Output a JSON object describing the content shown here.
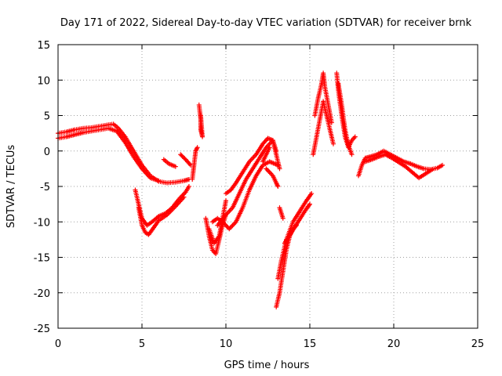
{
  "chart_data": {
    "type": "scatter",
    "title": "Day 171 of 2022, Sidereal Day-to-day VTEC variation (SDTVAR) for receiver brnk",
    "xlabel": "GPS time / hours",
    "ylabel": "SDTVAR / TECUs",
    "xlim": [
      0,
      25
    ],
    "ylim": [
      -25,
      15
    ],
    "xticks": [
      0,
      5,
      10,
      15,
      20,
      25
    ],
    "yticks": [
      15,
      10,
      5,
      0,
      -5,
      -10,
      -15,
      -20,
      -25
    ],
    "grid": true,
    "marker": "+",
    "color": "#ff0000",
    "series": [
      {
        "name": "brnk",
        "segments": [
          {
            "x": [
              0.0,
              0.5,
              1.0,
              1.5,
              2.0,
              2.5,
              3.0,
              3.3,
              3.6,
              4.0,
              4.5,
              5.0,
              5.5,
              6.0,
              6.5,
              7.0,
              7.5,
              7.8
            ],
            "y": [
              2.5,
              2.7,
              3.0,
              3.2,
              3.3,
              3.5,
              3.7,
              3.8,
              3.2,
              2.0,
              0.0,
              -2.0,
              -3.5,
              -4.3,
              -4.5,
              -4.4,
              -4.2,
              -4.0
            ]
          },
          {
            "x": [
              0.0,
              0.5,
              1.0,
              1.5,
              2.0,
              2.5,
              3.0,
              3.5,
              4.0,
              4.5,
              5.0,
              5.5,
              6.0
            ],
            "y": [
              1.8,
              2.0,
              2.3,
              2.6,
              2.8,
              3.0,
              3.2,
              2.8,
              1.2,
              -0.8,
              -2.5,
              -3.8,
              -4.2
            ]
          },
          {
            "x": [
              4.6,
              4.8,
              5.0,
              5.3,
              5.6,
              6.0,
              6.4,
              6.8,
              7.2,
              7.6,
              7.8
            ],
            "y": [
              -5.5,
              -7.5,
              -9.5,
              -10.5,
              -10.0,
              -9.2,
              -8.8,
              -8.0,
              -6.8,
              -5.8,
              -5.0
            ]
          },
          {
            "x": [
              4.8,
              5.0,
              5.2,
              5.4,
              5.7,
              6.0,
              6.5,
              7.0,
              7.5
            ],
            "y": [
              -8.0,
              -10.5,
              -11.5,
              -11.8,
              -10.8,
              -9.8,
              -9.0,
              -7.8,
              -6.5
            ]
          },
          {
            "x": [
              6.3,
              6.6,
              7.0
            ],
            "y": [
              -1.2,
              -1.8,
              -2.2
            ]
          },
          {
            "x": [
              7.3,
              7.6,
              7.9
            ],
            "y": [
              -0.5,
              -1.2,
              -2.0
            ]
          },
          {
            "x": [
              8.0,
              8.1,
              8.2,
              8.3
            ],
            "y": [
              -4.0,
              -2.0,
              0.0,
              0.5
            ]
          },
          {
            "x": [
              8.4,
              8.5,
              8.5,
              8.6,
              8.5
            ],
            "y": [
              6.5,
              4.5,
              3.0,
              2.0,
              5.0
            ]
          },
          {
            "x": [
              8.8,
              9.0,
              9.2,
              9.4,
              9.6,
              9.8,
              10.0
            ],
            "y": [
              -9.5,
              -12.0,
              -14.0,
              -14.5,
              -12.5,
              -10.5,
              -9.0
            ]
          },
          {
            "x": [
              9.0,
              9.3,
              9.6,
              9.8,
              10.0
            ],
            "y": [
              -11.0,
              -13.0,
              -12.0,
              -9.5,
              -7.0
            ]
          },
          {
            "x": [
              9.2,
              9.5,
              9.8,
              10.2,
              10.6,
              11.0,
              11.4,
              11.8,
              12.2,
              12.6,
              12.9,
              13.1
            ],
            "y": [
              -10.0,
              -9.5,
              -10.0,
              -11.0,
              -10.0,
              -8.0,
              -5.5,
              -3.5,
              -2.0,
              -1.5,
              -1.8,
              -2.0
            ]
          },
          {
            "x": [
              9.5,
              10.0,
              10.4,
              10.8,
              11.2,
              11.6,
              12.0,
              12.4,
              12.8,
              13.0
            ],
            "y": [
              -10.5,
              -9.0,
              -8.0,
              -6.0,
              -4.0,
              -2.5,
              -1.0,
              0.5,
              1.5,
              0.0
            ]
          },
          {
            "x": [
              10.0,
              10.3,
              10.6,
              11.0,
              11.4,
              11.8,
              12.2,
              12.5,
              12.8,
              13.0,
              13.2
            ],
            "y": [
              -6.0,
              -5.5,
              -4.5,
              -3.0,
              -1.5,
              -0.5,
              1.0,
              1.8,
              1.5,
              -0.5,
              -2.5
            ]
          },
          {
            "x": [
              12.4,
              12.6,
              12.8,
              13.0,
              13.1
            ],
            "y": [
              -2.5,
              -3.0,
              -3.5,
              -4.5,
              -5.0
            ]
          },
          {
            "x": [
              12.2,
              12.4,
              12.6
            ],
            "y": [
              -1.5,
              -0.5,
              0.5
            ]
          },
          {
            "x": [
              13.0,
              13.2,
              13.4,
              13.6,
              13.8,
              14.0,
              14.2
            ],
            "y": [
              -22.0,
              -20.0,
              -17.0,
              -14.0,
              -12.0,
              -11.0,
              -10.5
            ]
          },
          {
            "x": [
              13.1,
              13.3,
              13.6,
              14.0,
              14.4,
              14.8,
              15.1
            ],
            "y": [
              -18.0,
              -15.5,
              -12.5,
              -10.0,
              -8.5,
              -7.0,
              -6.0
            ]
          },
          {
            "x": [
              13.5,
              13.9,
              14.3,
              14.7,
              15.0
            ],
            "y": [
              -13.0,
              -11.5,
              -10.0,
              -8.5,
              -7.5
            ]
          },
          {
            "x": [
              13.2,
              13.4
            ],
            "y": [
              -8.0,
              -9.5
            ]
          },
          {
            "x": [
              15.2,
              15.4,
              15.6,
              15.8,
              16.0,
              16.2,
              16.4
            ],
            "y": [
              -0.5,
              2.0,
              4.5,
              7.0,
              5.0,
              3.0,
              1.0
            ]
          },
          {
            "x": [
              15.3,
              15.5,
              15.7,
              15.8,
              15.9,
              16.1,
              16.3
            ],
            "y": [
              5.0,
              7.5,
              9.5,
              11.0,
              9.0,
              6.5,
              4.0
            ]
          },
          {
            "x": [
              16.6,
              16.7,
              16.9,
              17.1,
              17.3,
              17.5,
              17.7
            ],
            "y": [
              11.0,
              8.5,
              5.0,
              2.0,
              0.5,
              1.5,
              2.0
            ]
          },
          {
            "x": [
              16.7,
              16.9,
              17.1,
              17.3,
              17.5
            ],
            "y": [
              9.5,
              6.5,
              3.0,
              0.8,
              -0.5
            ]
          },
          {
            "x": [
              17.9,
              18.1,
              18.3,
              18.6,
              19.0,
              19.4,
              19.8,
              20.2,
              20.6,
              21.0,
              21.4,
              21.8,
              22.2,
              22.6,
              22.9
            ],
            "y": [
              -3.5,
              -2.0,
              -1.0,
              -0.8,
              -0.5,
              0.0,
              -0.5,
              -1.0,
              -1.5,
              -1.8,
              -2.2,
              -2.5,
              -2.6,
              -2.4,
              -2.0
            ]
          },
          {
            "x": [
              18.3,
              18.7,
              19.1,
              19.5,
              19.9,
              20.3,
              20.7,
              21.1,
              21.5,
              21.9,
              22.3
            ],
            "y": [
              -1.5,
              -1.2,
              -0.8,
              -0.5,
              -1.0,
              -1.6,
              -2.2,
              -3.0,
              -3.8,
              -3.2,
              -2.6
            ]
          }
        ]
      }
    ]
  }
}
